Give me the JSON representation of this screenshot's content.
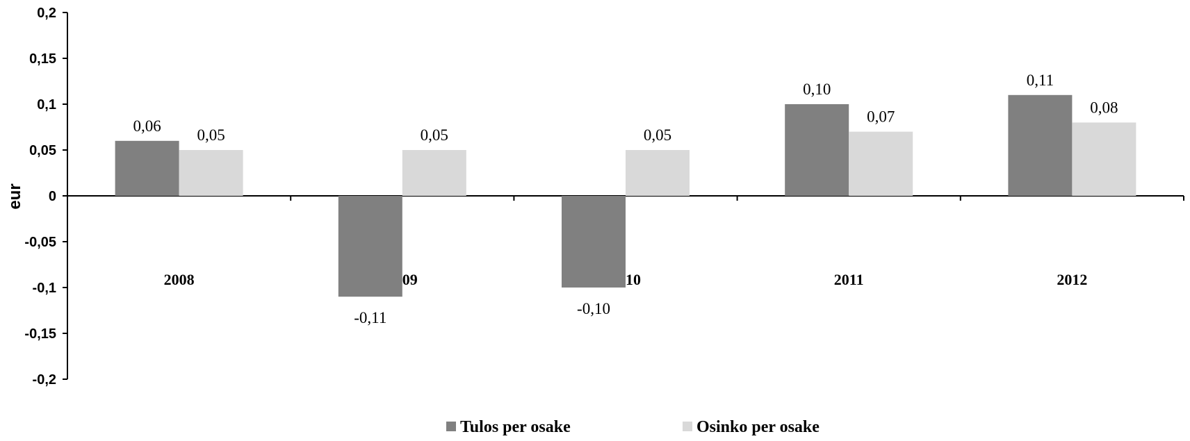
{
  "chart_data": {
    "type": "bar",
    "categories": [
      "2008",
      "2009",
      "2010",
      "2011",
      "2012"
    ],
    "series": [
      {
        "name": "Tulos per osake",
        "values": [
          0.06,
          -0.11,
          -0.1,
          0.1,
          0.11
        ],
        "labels": [
          "0,06",
          "-0,11",
          "-0,10",
          "0,10",
          "0,11"
        ],
        "color": "#808080"
      },
      {
        "name": "Osinko per osake",
        "values": [
          0.05,
          0.05,
          0.05,
          0.07,
          0.08
        ],
        "labels": [
          "0,05",
          "0,05",
          "0,05",
          "0,07",
          "0,08"
        ],
        "color": "#d9d9d9"
      }
    ],
    "ylabel": "eur",
    "xlabel": "",
    "ylim": [
      -0.2,
      0.2
    ],
    "yticks": [
      0.2,
      0.15,
      0.1,
      0.05,
      0,
      -0.05,
      -0.1,
      -0.15,
      -0.2
    ],
    "ytick_labels": [
      "0,2",
      "0,15",
      "0,1",
      "0,05",
      "0",
      "-0,05",
      "-0,1",
      "-0,15",
      "-0,2"
    ],
    "grid": false,
    "legend": "bottom-center"
  }
}
